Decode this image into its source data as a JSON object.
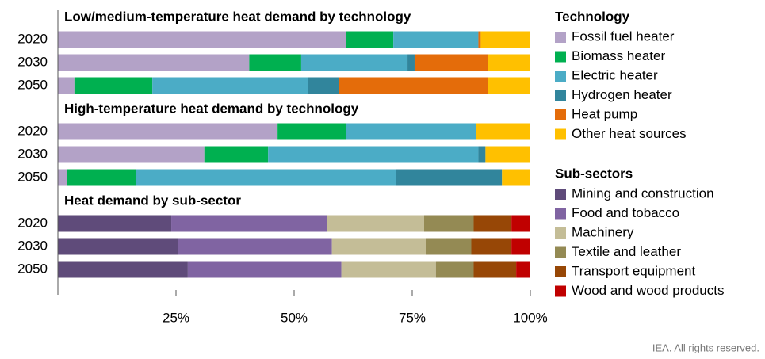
{
  "chart_data": [
    {
      "type": "bar",
      "orientation": "horizontal",
      "stacked": true,
      "title": "Low/medium-temperature heat demand by technology",
      "legend_title": "Technology",
      "categories": [
        "2020",
        "2030",
        "2050"
      ],
      "xlim": [
        0,
        100
      ],
      "series": [
        {
          "name": "Fossil fuel heater",
          "color": "#b3a2c7",
          "values": [
            61,
            40.5,
            3.5
          ]
        },
        {
          "name": "Biomass heater",
          "color": "#00b050",
          "values": [
            10,
            11,
            16.5
          ]
        },
        {
          "name": "Electric heater",
          "color": "#4bacc6",
          "values": [
            18,
            22.5,
            33
          ]
        },
        {
          "name": "Hydrogen heater",
          "color": "#31859c",
          "values": [
            0,
            1.5,
            6.5
          ]
        },
        {
          "name": "Heat pump",
          "color": "#e46c0a",
          "values": [
            0.5,
            15.5,
            31.5
          ]
        },
        {
          "name": "Other heat sources",
          "color": "#ffc000",
          "values": [
            10.5,
            9,
            9
          ]
        }
      ]
    },
    {
      "type": "bar",
      "orientation": "horizontal",
      "stacked": true,
      "title": "High-temperature heat demand by technology",
      "categories": [
        "2020",
        "2030",
        "2050"
      ],
      "xlim": [
        0,
        100
      ],
      "series": [
        {
          "color": "#b3a2c7",
          "values": [
            46.5,
            31,
            2
          ]
        },
        {
          "color": "#00b050",
          "values": [
            14.5,
            13.5,
            14.5
          ]
        },
        {
          "color": "#4bacc6",
          "values": [
            27.5,
            44.5,
            55
          ]
        },
        {
          "color": "#31859c",
          "values": [
            0,
            1.5,
            22.5
          ]
        },
        {
          "color": "#e46c0a",
          "values": [
            0,
            0,
            0
          ]
        },
        {
          "color": "#ffc000",
          "values": [
            11.5,
            9.5,
            6
          ]
        }
      ]
    },
    {
      "type": "bar",
      "orientation": "horizontal",
      "stacked": true,
      "title": "Heat demand by sub-sector",
      "legend_title": "Sub-sectors",
      "categories": [
        "2020",
        "2030",
        "2050"
      ],
      "xlim": [
        0,
        100
      ],
      "xticks": [
        {
          "value": 25,
          "label": "25%"
        },
        {
          "value": 50,
          "label": "50%"
        },
        {
          "value": 75,
          "label": "75%"
        },
        {
          "value": 100,
          "label": "100%"
        }
      ],
      "series": [
        {
          "name": "Mining and construction",
          "color": "#5f4b7a",
          "values": [
            24,
            25.5,
            27.5
          ]
        },
        {
          "name": "Food and tobacco",
          "color": "#8064a2",
          "values": [
            33,
            32.5,
            32.5
          ]
        },
        {
          "name": "Machinery",
          "color": "#c4bd97",
          "values": [
            20.5,
            20,
            20
          ]
        },
        {
          "name": "Textile and leather",
          "color": "#948a54",
          "values": [
            10.5,
            9.5,
            8
          ]
        },
        {
          "name": "Transport equipment",
          "color": "#974706",
          "values": [
            8,
            8.5,
            9
          ]
        },
        {
          "name": "Wood and wood products",
          "color": "#c00000",
          "values": [
            4,
            4,
            3
          ]
        }
      ]
    }
  ],
  "source": "IEA. All rights reserved."
}
